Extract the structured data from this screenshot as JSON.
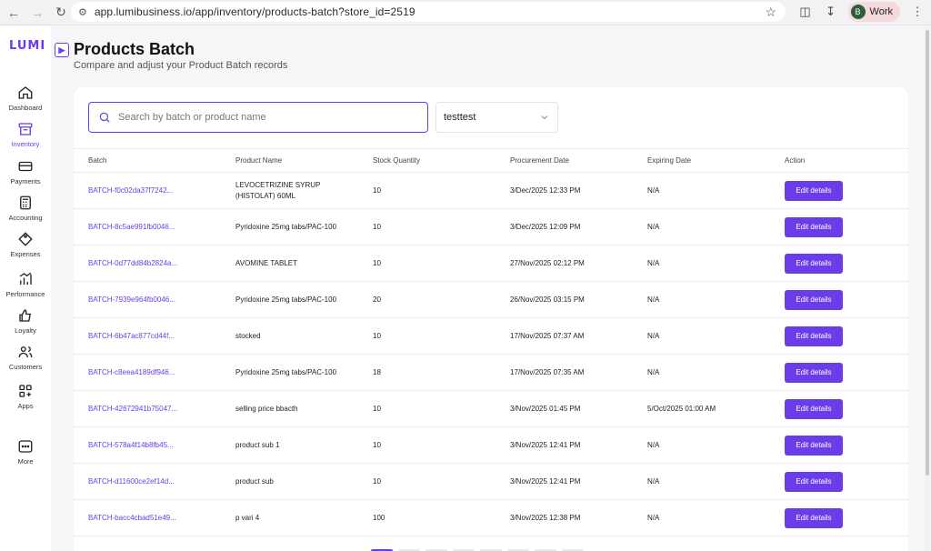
{
  "browser": {
    "url": "app.lumibusiness.io/app/inventory/products-batch?store_id=2519",
    "profile_initial": "B",
    "profile_name": "Work"
  },
  "sidebar": {
    "logo": "LUMI",
    "items": [
      {
        "label": "Dashboard",
        "icon": "home-icon"
      },
      {
        "label": "Inventory",
        "icon": "inventory-icon",
        "active": true
      },
      {
        "label": "Payments",
        "icon": "card-icon"
      },
      {
        "label": "Accounting",
        "icon": "calculator-icon"
      },
      {
        "label": "Expenses",
        "icon": "tag-icon"
      },
      {
        "label": "Performance",
        "icon": "chart-icon"
      },
      {
        "label": "Loyalty",
        "icon": "thumbs-up-icon"
      },
      {
        "label": "Customers",
        "icon": "users-icon"
      },
      {
        "label": "Apps",
        "icon": "apps-icon"
      },
      {
        "label": "More",
        "icon": "more-icon"
      }
    ]
  },
  "header": {
    "title": "Products Batch",
    "subtitle": "Compare and adjust your Product Batch records"
  },
  "filters": {
    "search_placeholder": "Search by batch or product name",
    "store_value": "testtest"
  },
  "table": {
    "columns": [
      "Batch",
      "Product Name",
      "Stock Quantity",
      "Procurement Date",
      "Expiring Date",
      "Action"
    ],
    "rows": [
      {
        "batch": "BATCH-f0c02da37f7242...",
        "product": "LEVOCETRIZINE SYRUP (HISTOLAT) 60ML",
        "qty": "10",
        "procured": "3/Dec/2025 12:33 PM",
        "expires": "N/A",
        "action": "Edit details"
      },
      {
        "batch": "BATCH-8c5ae991fb0046...",
        "product": "Pyridoxine 25mg tabs/PAC-100",
        "qty": "10",
        "procured": "3/Dec/2025 12:09 PM",
        "expires": "N/A",
        "action": "Edit details"
      },
      {
        "batch": "BATCH-0d77dd84b2824a...",
        "product": "AVOMINE TABLET",
        "qty": "10",
        "procured": "27/Nov/2025 02:12 PM",
        "expires": "N/A",
        "action": "Edit details"
      },
      {
        "batch": "BATCH-7939e964fb0046...",
        "product": "Pyridoxine 25mg tabs/PAC-100",
        "qty": "20",
        "procured": "26/Nov/2025 03:15 PM",
        "expires": "N/A",
        "action": "Edit details"
      },
      {
        "batch": "BATCH-6b47ac877cd44f...",
        "product": "stocked",
        "qty": "10",
        "procured": "17/Nov/2025 07:37 AM",
        "expires": "N/A",
        "action": "Edit details"
      },
      {
        "batch": "BATCH-c8eea4189df946...",
        "product": "Pyridoxine 25mg tabs/PAC-100",
        "qty": "18",
        "procured": "17/Nov/2025 07:35 AM",
        "expires": "N/A",
        "action": "Edit details"
      },
      {
        "batch": "BATCH-42672941b75047...",
        "product": "selling price bbacth",
        "qty": "10",
        "procured": "3/Nov/2025 01:45 PM",
        "expires": "5/Oct/2025 01:00 AM",
        "action": "Edit details"
      },
      {
        "batch": "BATCH-578a4f14b8fb45...",
        "product": "product sub 1",
        "qty": "10",
        "procured": "3/Nov/2025 12:41 PM",
        "expires": "N/A",
        "action": "Edit details"
      },
      {
        "batch": "BATCH-d11600ce2ef14d...",
        "product": "product sub",
        "qty": "10",
        "procured": "3/Nov/2025 12:41 PM",
        "expires": "N/A",
        "action": "Edit details"
      },
      {
        "batch": "BATCH-bacc4cbad51e49...",
        "product": "p vari 4",
        "qty": "100",
        "procured": "3/Nov/2025 12:38 PM",
        "expires": "N/A",
        "action": "Edit details"
      }
    ]
  },
  "colors": {
    "accent": "#6a3de8",
    "background": "#f6f6f8"
  }
}
